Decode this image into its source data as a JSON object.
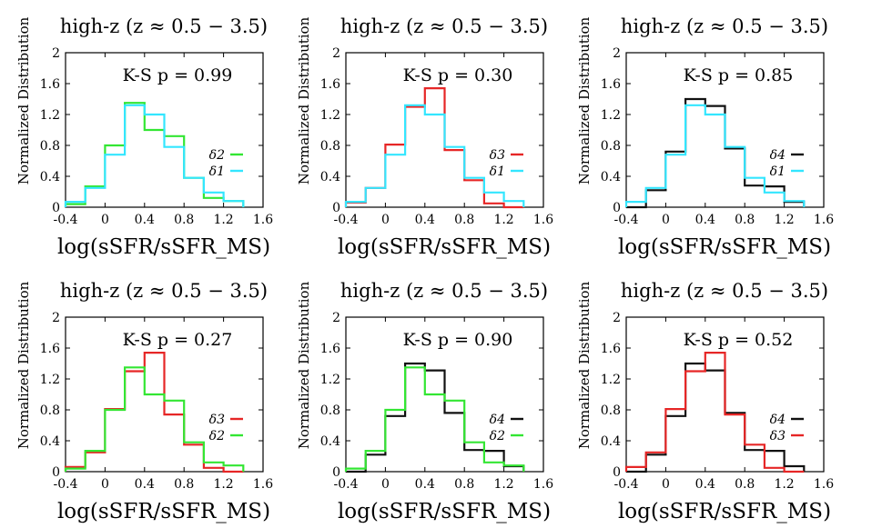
{
  "colors": {
    "delta1": "#33e6ff",
    "delta2": "#33e633",
    "delta3": "#e62626",
    "delta4": "#111111",
    "axis": "#000000"
  },
  "chart_data": [
    {
      "type": "histogram-step",
      "title": "high-z (z ≈ 0.5 − 3.5)",
      "annotation": "K-S p = 0.99",
      "xlabel": "log(sSFR/sSFR_MS)",
      "ylabel": "Normalized Distribution",
      "xlim": [
        -0.4,
        1.6
      ],
      "ylim": [
        0,
        2
      ],
      "xticks": [
        "-0.4",
        "0",
        "0.4",
        "0.8",
        "1.2",
        "1.6"
      ],
      "yticks": [
        "0",
        "0.4",
        "0.8",
        "1.2",
        "1.6",
        "2"
      ],
      "bin_edges": [
        -0.4,
        -0.2,
        0.0,
        0.2,
        0.4,
        0.6,
        0.8,
        1.0,
        1.2,
        1.4
      ],
      "legend_position": "right",
      "series": [
        {
          "name": "δ2",
          "color_key": "delta2",
          "values": [
            0.04,
            0.27,
            0.8,
            1.35,
            1.0,
            0.92,
            0.38,
            0.12,
            0.08
          ]
        },
        {
          "name": "δ1",
          "color_key": "delta1",
          "values": [
            0.07,
            0.25,
            0.68,
            1.32,
            1.2,
            0.78,
            0.38,
            0.19,
            0.08
          ]
        }
      ]
    },
    {
      "type": "histogram-step",
      "title": "high-z (z ≈ 0.5 − 3.5)",
      "annotation": "K-S p = 0.30",
      "xlabel": "log(sSFR/sSFR_MS)",
      "ylabel": "Normalized Distribution",
      "xlim": [
        -0.4,
        1.6
      ],
      "ylim": [
        0,
        2
      ],
      "xticks": [
        "-0.4",
        "0",
        "0.4",
        "0.8",
        "1.2",
        "1.6"
      ],
      "yticks": [
        "0",
        "0.4",
        "0.8",
        "1.2",
        "1.6",
        "2"
      ],
      "bin_edges": [
        -0.4,
        -0.2,
        0.0,
        0.2,
        0.4,
        0.6,
        0.8,
        1.0,
        1.2,
        1.4
      ],
      "legend_position": "right",
      "series": [
        {
          "name": "δ3",
          "color_key": "delta3",
          "values": [
            0.06,
            0.25,
            0.81,
            1.3,
            1.54,
            0.74,
            0.35,
            0.05,
            0.0
          ]
        },
        {
          "name": "δ1",
          "color_key": "delta1",
          "values": [
            0.07,
            0.25,
            0.68,
            1.32,
            1.2,
            0.78,
            0.38,
            0.19,
            0.08
          ]
        }
      ]
    },
    {
      "type": "histogram-step",
      "title": "high-z (z ≈ 0.5 − 3.5)",
      "annotation": "K-S p = 0.85",
      "xlabel": "log(sSFR/sSFR_MS)",
      "ylabel": "Normalized Distribution",
      "xlim": [
        -0.4,
        1.6
      ],
      "ylim": [
        0,
        2
      ],
      "xticks": [
        "-0.4",
        "0",
        "0.4",
        "0.8",
        "1.2",
        "1.6"
      ],
      "yticks": [
        "0",
        "0.4",
        "0.8",
        "1.2",
        "1.6",
        "2"
      ],
      "bin_edges": [
        -0.4,
        -0.2,
        0.0,
        0.2,
        0.4,
        0.6,
        0.8,
        1.0,
        1.2,
        1.4
      ],
      "legend_position": "right",
      "series": [
        {
          "name": "δ4",
          "color_key": "delta4",
          "values": [
            0.0,
            0.22,
            0.72,
            1.4,
            1.31,
            0.76,
            0.28,
            0.27,
            0.07
          ]
        },
        {
          "name": "δ1",
          "color_key": "delta1",
          "values": [
            0.07,
            0.25,
            0.68,
            1.32,
            1.2,
            0.78,
            0.38,
            0.19,
            0.08
          ]
        }
      ]
    },
    {
      "type": "histogram-step",
      "title": "high-z (z ≈ 0.5 − 3.5)",
      "annotation": "K-S p = 0.27",
      "xlabel": "log(sSFR/sSFR_MS)",
      "ylabel": "Normalized Distribution",
      "xlim": [
        -0.4,
        1.6
      ],
      "ylim": [
        0,
        2
      ],
      "xticks": [
        "-0.4",
        "0",
        "0.4",
        "0.8",
        "1.2",
        "1.6"
      ],
      "yticks": [
        "0",
        "0.4",
        "0.8",
        "1.2",
        "1.6",
        "2"
      ],
      "bin_edges": [
        -0.4,
        -0.2,
        0.0,
        0.2,
        0.4,
        0.6,
        0.8,
        1.0,
        1.2,
        1.4
      ],
      "legend_position": "right",
      "series": [
        {
          "name": "δ3",
          "color_key": "delta3",
          "values": [
            0.06,
            0.25,
            0.81,
            1.3,
            1.54,
            0.74,
            0.35,
            0.05,
            0.0
          ]
        },
        {
          "name": "δ2",
          "color_key": "delta2",
          "values": [
            0.04,
            0.27,
            0.8,
            1.35,
            1.0,
            0.92,
            0.38,
            0.12,
            0.08
          ]
        }
      ]
    },
    {
      "type": "histogram-step",
      "title": "high-z (z ≈ 0.5 − 3.5)",
      "annotation": "K-S p = 0.90",
      "xlabel": "log(sSFR/sSFR_MS)",
      "ylabel": "Normalized Distribution",
      "xlim": [
        -0.4,
        1.6
      ],
      "ylim": [
        0,
        2
      ],
      "xticks": [
        "-0.4",
        "0",
        "0.4",
        "0.8",
        "1.2",
        "1.6"
      ],
      "yticks": [
        "0",
        "0.4",
        "0.8",
        "1.2",
        "1.6",
        "2"
      ],
      "bin_edges": [
        -0.4,
        -0.2,
        0.0,
        0.2,
        0.4,
        0.6,
        0.8,
        1.0,
        1.2,
        1.4
      ],
      "legend_position": "right",
      "series": [
        {
          "name": "δ4",
          "color_key": "delta4",
          "values": [
            0.0,
            0.22,
            0.72,
            1.4,
            1.31,
            0.76,
            0.28,
            0.27,
            0.07
          ]
        },
        {
          "name": "δ2",
          "color_key": "delta2",
          "values": [
            0.04,
            0.27,
            0.8,
            1.35,
            1.0,
            0.92,
            0.38,
            0.12,
            0.08
          ]
        }
      ]
    },
    {
      "type": "histogram-step",
      "title": "high-z (z ≈ 0.5 − 3.5)",
      "annotation": "K-S p = 0.52",
      "xlabel": "log(sSFR/sSFR_MS)",
      "ylabel": "Normalized Distribution",
      "xlim": [
        -0.4,
        1.6
      ],
      "ylim": [
        0,
        2
      ],
      "xticks": [
        "-0.4",
        "0",
        "0.4",
        "0.8",
        "1.2",
        "1.6"
      ],
      "yticks": [
        "0",
        "0.4",
        "0.8",
        "1.2",
        "1.6",
        "2"
      ],
      "bin_edges": [
        -0.4,
        -0.2,
        0.0,
        0.2,
        0.4,
        0.6,
        0.8,
        1.0,
        1.2,
        1.4
      ],
      "legend_position": "right",
      "series": [
        {
          "name": "δ4",
          "color_key": "delta4",
          "values": [
            0.0,
            0.22,
            0.72,
            1.4,
            1.31,
            0.76,
            0.28,
            0.27,
            0.07
          ]
        },
        {
          "name": "δ3",
          "color_key": "delta3",
          "values": [
            0.06,
            0.25,
            0.81,
            1.3,
            1.54,
            0.74,
            0.35,
            0.05,
            0.0
          ]
        }
      ]
    }
  ]
}
